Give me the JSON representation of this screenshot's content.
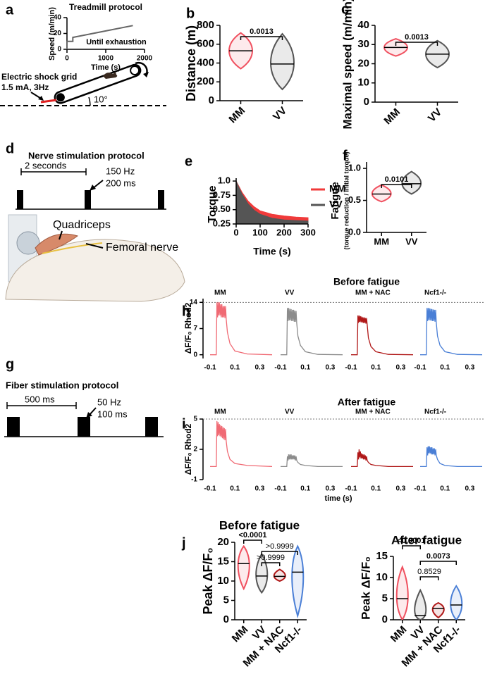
{
  "panel_labels": [
    "a",
    "b",
    "c",
    "d",
    "e",
    "f",
    "g",
    "h",
    "i",
    "j"
  ],
  "diagrams": {
    "treadmill": {
      "grid_label": "Electric shock grid",
      "grid_params": "1.5 mA, 3Hz",
      "angle": "10°"
    },
    "nerve": {
      "title": "Nerve stimulation protocol",
      "interval": "2 seconds",
      "frequency": "150 Hz",
      "duration": "200 ms",
      "muscle": "Quadriceps",
      "nerve": "Femoral nerve"
    },
    "fiber": {
      "title": "Fiber stimulation protocol",
      "interval": "500 ms",
      "frequency": "50 Hz",
      "duration": "100 ms"
    }
  },
  "chart_data": [
    {
      "type": "line",
      "title": "Treadmill protocol",
      "xlabel": "Time (s)",
      "ylabel": "Speed (m/min)",
      "annotation": "Until exhaustion",
      "x": [
        0,
        0,
        150,
        150,
        1700
      ],
      "values": [
        0,
        10,
        10,
        15,
        30
      ],
      "color": "#666666",
      "xlim": [
        0,
        2000
      ],
      "xticks": [
        0,
        1000,
        2000
      ],
      "ylim": [
        0,
        40
      ],
      "yticks": [
        0,
        20,
        40
      ]
    },
    {
      "type": "violin",
      "ylabel": "Distance (m)",
      "categories": [
        "MM",
        "VV"
      ],
      "colors": [
        "#f0505f",
        "#555555"
      ],
      "rotate_labels": true,
      "stats": [
        {
          "min": 340,
          "median": 530,
          "max": 720
        },
        {
          "min": 120,
          "median": 390,
          "max": 710
        }
      ],
      "ylim": [
        0,
        800
      ],
      "yticks": [
        0,
        200,
        400,
        600,
        800
      ],
      "comparisons": [
        {
          "between": [
            0,
            1
          ],
          "label": "0.0013",
          "bold": true
        }
      ]
    },
    {
      "type": "violin",
      "ylabel": "Maximal speed (m/min)",
      "categories": [
        "MM",
        "VV"
      ],
      "colors": [
        "#f0505f",
        "#555555"
      ],
      "rotate_labels": true,
      "stats": [
        {
          "min": 24,
          "median": 28.5,
          "max": 33
        },
        {
          "min": 18,
          "median": 25,
          "max": 32
        }
      ],
      "ylim": [
        0,
        40
      ],
      "yticks": [
        0,
        10,
        20,
        30,
        40
      ],
      "comparisons": [
        {
          "between": [
            0,
            1
          ],
          "label": "0.0013",
          "bold": true
        }
      ]
    },
    {
      "type": "area",
      "xlabel": "Time (s)",
      "ylabel": "Torque",
      "legend": "upper right",
      "x": [
        0,
        10,
        25,
        50,
        75,
        100,
        150,
        200,
        250,
        300
      ],
      "series": [
        {
          "name": "MM",
          "color": "#f03a3a",
          "values": [
            1.0,
            0.92,
            0.8,
            0.65,
            0.55,
            0.48,
            0.42,
            0.39,
            0.37,
            0.36
          ]
        },
        {
          "name": "VV",
          "color": "#555555",
          "values": [
            1.0,
            0.9,
            0.77,
            0.6,
            0.49,
            0.42,
            0.35,
            0.32,
            0.31,
            0.3
          ]
        }
      ],
      "xlim": [
        0,
        300
      ],
      "xticks": [
        0,
        100,
        200,
        300
      ],
      "ylim": [
        0.25,
        1.05
      ],
      "yticks": [
        0.25,
        {
          "value": 0.5,
          "label": "0.50"
        },
        0.75,
        {
          "value": 1,
          "label": "1.0"
        }
      ]
    },
    {
      "type": "violin",
      "ylabel": "Fatigue",
      "ylabel_note": "(torque reduction / initial torque)",
      "categories": [
        "MM",
        "VV"
      ],
      "colors": [
        "#f0505f",
        "#555555"
      ],
      "rotate_labels": false,
      "stats": [
        {
          "min": 0.48,
          "median": 0.6,
          "max": 0.74
        },
        {
          "min": 0.6,
          "median": 0.76,
          "max": 0.95
        }
      ],
      "ylim": [
        0,
        1.1
      ],
      "yticks": [
        {
          "value": 0,
          "label": "0.0"
        },
        0.5,
        {
          "value": 1,
          "label": "1.0"
        }
      ],
      "comparisons": [
        {
          "between": [
            0,
            1
          ],
          "label": "0.0101",
          "bold": true
        }
      ]
    },
    {
      "type": "trace",
      "title": "Before fatigue",
      "ylabel": "ΔF/F₀ Rhod2",
      "hline": 14,
      "x": [
        -0.1,
        -0.05,
        -0.045,
        -0.04,
        -0.035,
        -0.03,
        -0.025,
        -0.02,
        -0.015,
        -0.01,
        -0.005,
        0,
        0.005,
        0.01,
        0.015,
        0.02,
        0.025,
        0.03,
        0.04,
        0.06,
        0.1,
        0.2,
        0.4
      ],
      "series": [
        {
          "name": "MM",
          "color": "#f06a74",
          "values": [
            0,
            0,
            14,
            10,
            14,
            10.5,
            14,
            10.5,
            13.5,
            10,
            13.5,
            10,
            13,
            10,
            13,
            9.8,
            13,
            9.5,
            6,
            3,
            1,
            0.2,
            0
          ]
        },
        {
          "name": "VV",
          "color": "#8c8c8c",
          "values": [
            0,
            0,
            12.5,
            9,
            12.5,
            9.2,
            12.3,
            9.2,
            12.2,
            9,
            12,
            9,
            12,
            8.8,
            11.8,
            8.8,
            11.7,
            8.5,
            5,
            2.5,
            0.8,
            0.1,
            0
          ]
        },
        {
          "name": "MM + NAC",
          "color": "#b01818",
          "values": [
            0,
            0,
            10.5,
            8.5,
            10.5,
            8.8,
            10.3,
            8.7,
            10.2,
            8.6,
            10,
            8.5,
            10,
            8.5,
            9.8,
            8.3,
            9.8,
            8,
            4.5,
            2.2,
            0.8,
            0.1,
            0
          ]
        },
        {
          "name": "Ncf1-/-",
          "color": "#4a7fd6",
          "values": [
            0,
            0,
            12.5,
            9,
            12.5,
            9.3,
            12.4,
            9.2,
            12.3,
            9.1,
            12.2,
            9,
            12.1,
            9,
            12,
            8.8,
            12,
            8.6,
            5,
            2.5,
            0.8,
            0.1,
            0
          ]
        }
      ],
      "xlim": [
        -0.1,
        0.4
      ],
      "xticks": [
        -0.1,
        0.1,
        0.3
      ],
      "ylim": [
        -1,
        15
      ],
      "yticks": [
        0,
        7,
        14
      ]
    },
    {
      "type": "trace",
      "title": "After fatigue",
      "xlabel": "time (s)",
      "ylabel": "ΔF/F₀ Rhod2",
      "hline": 5,
      "x": [
        -0.1,
        -0.05,
        -0.045,
        -0.04,
        -0.035,
        -0.03,
        -0.025,
        -0.02,
        -0.015,
        -0.01,
        -0.005,
        0,
        0.005,
        0.01,
        0.015,
        0.02,
        0.025,
        0.03,
        0.04,
        0.06,
        0.1,
        0.2,
        0.4
      ],
      "series": [
        {
          "name": "MM",
          "color": "#f06a74",
          "values": [
            0.3,
            0.3,
            4.8,
            3.3,
            4.7,
            3.4,
            4.5,
            3.3,
            4.4,
            3.2,
            4.3,
            3.1,
            4.2,
            3,
            4.1,
            2.9,
            4,
            2.8,
            1.8,
            1,
            0.6,
            0.4,
            0.3
          ]
        },
        {
          "name": "VV",
          "color": "#8c8c8c",
          "values": [
            0.3,
            0.3,
            1.3,
            0.9,
            1.5,
            1,
            1.5,
            1,
            1.5,
            1,
            1.4,
            1,
            1.4,
            1,
            1.4,
            0.9,
            1.3,
            0.9,
            0.7,
            0.5,
            0.4,
            0.3,
            0.3
          ]
        },
        {
          "name": "MM + NAC",
          "color": "#b01818",
          "values": [
            0.3,
            0.3,
            1.7,
            1,
            2,
            1.2,
            1.8,
            1.1,
            1.6,
            1.1,
            1.5,
            1,
            1.5,
            1,
            1.4,
            0.9,
            1.3,
            0.9,
            0.7,
            0.5,
            0.4,
            0.3,
            0.3
          ]
        },
        {
          "name": "Ncf1-/-",
          "color": "#4a7fd6",
          "values": [
            0.3,
            0.3,
            2.2,
            1.4,
            2.3,
            1.6,
            2.3,
            1.6,
            2.2,
            1.5,
            2.2,
            1.5,
            2.1,
            1.5,
            2.1,
            1.4,
            2,
            1.4,
            1,
            0.6,
            0.4,
            0.3,
            0.3
          ]
        }
      ],
      "xlim": [
        -0.1,
        0.4
      ],
      "xticks": [
        -0.1,
        0.1,
        0.3
      ],
      "ylim": [
        -1,
        5
      ],
      "yticks": [
        -1,
        2,
        5
      ]
    },
    {
      "type": "violin",
      "title": "Before fatigue",
      "ylabel": "Peak ΔF/F₀",
      "categories": [
        "MM",
        "VV",
        "MM + NAC",
        "Ncf1-/-"
      ],
      "colors": [
        "#f0505f",
        "#555555",
        "#b01818",
        "#4a7fd6"
      ],
      "rotate_labels": true,
      "stats": [
        {
          "min": 8,
          "median": 14.5,
          "max": 19
        },
        {
          "min": 7,
          "median": 11.3,
          "max": 17
        },
        {
          "min": 10,
          "median": 11.2,
          "max": 13
        },
        {
          "min": 1,
          "median": 12.3,
          "max": 19
        }
      ],
      "ylim": [
        0,
        20
      ],
      "yticks": [
        0,
        5,
        10,
        15,
        20
      ],
      "comparisons": [
        {
          "between": [
            0,
            1
          ],
          "label": "<0.0001",
          "bold": true
        },
        {
          "between": [
            1,
            3
          ],
          "label": ">0.9999",
          "bold": false
        },
        {
          "between": [
            1,
            2
          ],
          "label": ">0.9999",
          "bold": false
        }
      ]
    },
    {
      "type": "violin",
      "title": "After fatigue",
      "ylabel": "Peak ΔF/F₀",
      "categories": [
        "MM",
        "VV",
        "MM + NAC",
        "Ncf1-/-"
      ],
      "colors": [
        "#f0505f",
        "#555555",
        "#b01818",
        "#4a7fd6"
      ],
      "rotate_labels": true,
      "stats": [
        {
          "min": 0,
          "median": 5,
          "max": 12.5
        },
        {
          "min": 0,
          "median": 1,
          "max": 7
        },
        {
          "min": 0.5,
          "median": 2.7,
          "max": 4
        },
        {
          "min": 0,
          "median": 3.5,
          "max": 8
        }
      ],
      "ylim": [
        0,
        15
      ],
      "yticks": [
        0,
        5,
        10,
        15
      ],
      "comparisons": [
        {
          "between": [
            0,
            1
          ],
          "label": "<0.0001",
          "bold": true
        },
        {
          "between": [
            1,
            3
          ],
          "label": "0.0073",
          "bold": true
        },
        {
          "between": [
            1,
            2
          ],
          "label": "0.8529",
          "bold": false
        }
      ]
    }
  ]
}
